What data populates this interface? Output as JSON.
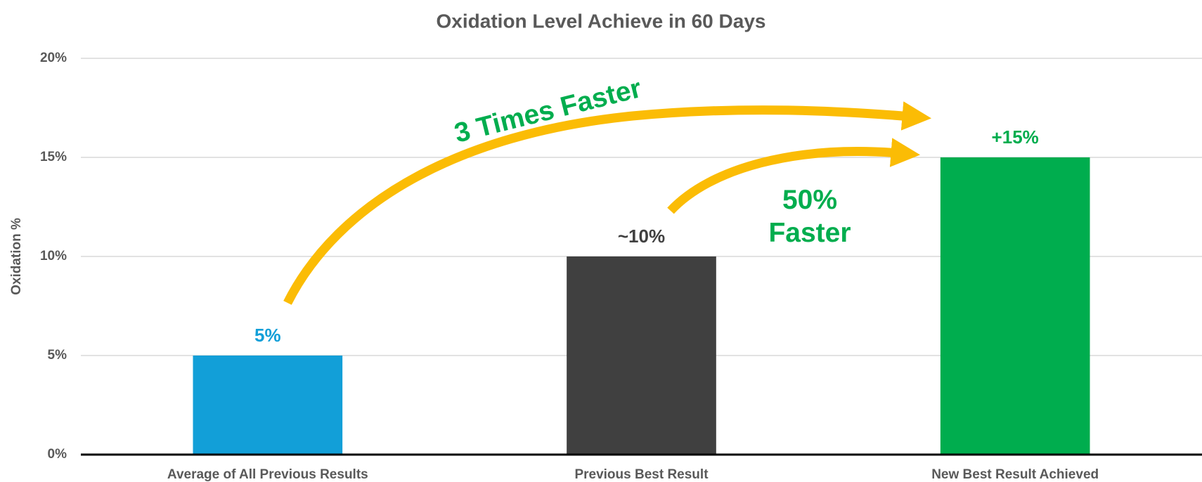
{
  "chart_data": {
    "type": "bar",
    "title": "Oxidation Level Achieve in 60 Days",
    "y_label": "Oxidation %",
    "categories": [
      "Average of All Previous Results",
      "Previous Best Result",
      "New Best Result Achieved"
    ],
    "values": [
      5,
      10,
      15
    ],
    "value_labels": [
      "5%",
      "~10%",
      "+15%"
    ],
    "colors": [
      "#129fd8",
      "#404040",
      "#00ad4e"
    ],
    "ylim": [
      0,
      20
    ],
    "yticks": [
      {
        "value": 0,
        "label": "0%"
      },
      {
        "value": 5,
        "label": "5%"
      },
      {
        "value": 10,
        "label": "10%"
      },
      {
        "value": 15,
        "label": "15%"
      },
      {
        "value": 20,
        "label": "20%"
      }
    ],
    "grid": true,
    "annotations": [
      {
        "text": "3 Times Faster",
        "color": "#00ad4e"
      },
      {
        "text": "50% Faster",
        "color": "#00ad4e"
      }
    ]
  }
}
